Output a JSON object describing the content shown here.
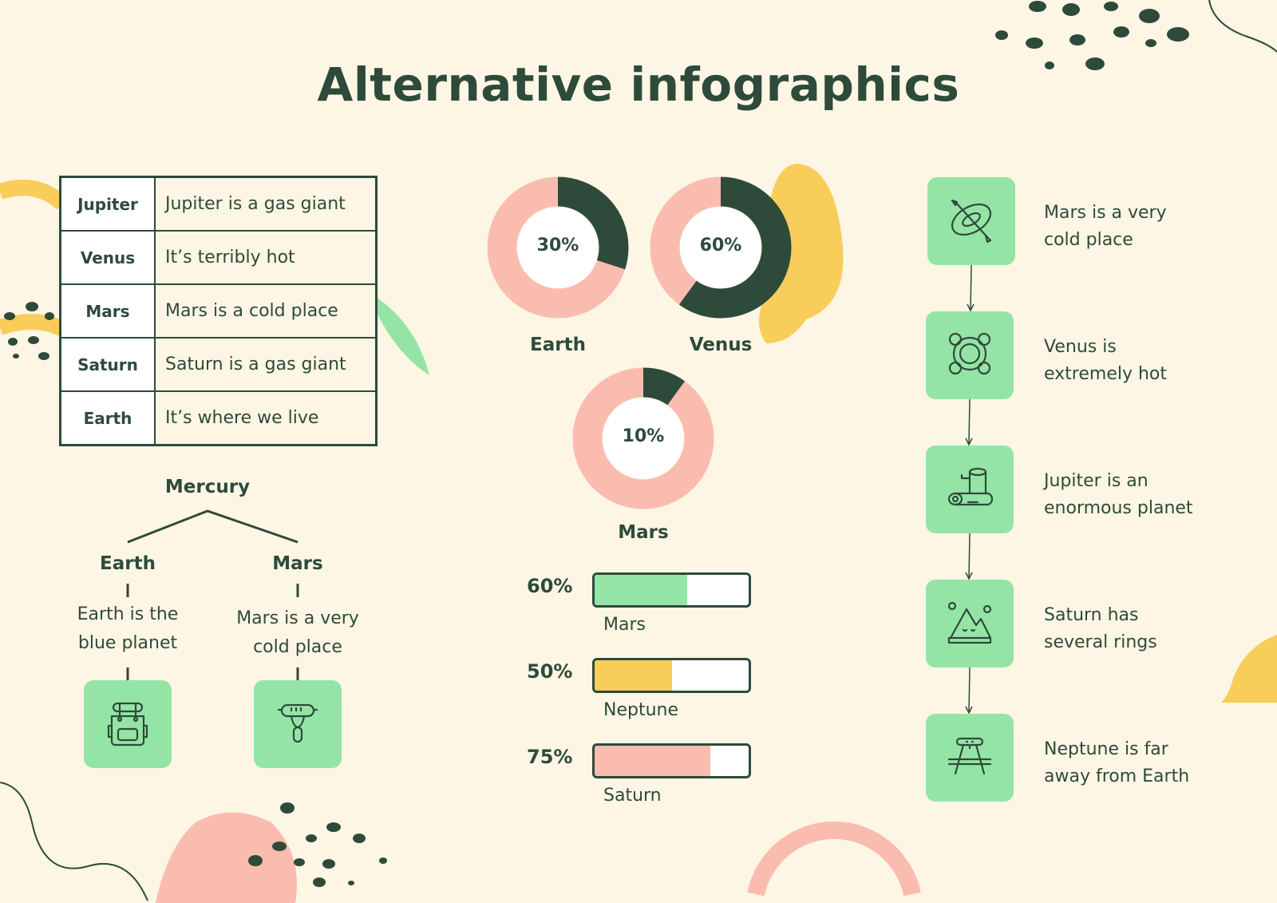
{
  "title": "Alternative infographics",
  "colors": {
    "background": "#fdf6e4",
    "dark": "#2e4a3b",
    "pink": "#fbbcb0",
    "green": "#94e5a5",
    "yellow": "#f9cd5a"
  },
  "table": [
    {
      "planet": "Jupiter",
      "desc": "Jupiter is a gas giant"
    },
    {
      "planet": "Venus",
      "desc": "It’s terribly hot"
    },
    {
      "planet": "Mars",
      "desc": "Mars is a cold place"
    },
    {
      "planet": "Saturn",
      "desc": "Saturn is a gas giant"
    },
    {
      "planet": "Earth",
      "desc": "It’s where we live"
    }
  ],
  "donuts": [
    {
      "label": "Earth",
      "value": 30,
      "text": "30%"
    },
    {
      "label": "Venus",
      "value": 60,
      "text": "60%"
    },
    {
      "label": "Mars",
      "value": 10,
      "text": "10%"
    }
  ],
  "bars": [
    {
      "label": "Mars",
      "value": 60,
      "text": "60%",
      "color": "#94e5a5"
    },
    {
      "label": "Neptune",
      "value": 50,
      "text": "50%",
      "color": "#f9cd5a"
    },
    {
      "label": "Saturn",
      "value": 75,
      "text": "75%",
      "color": "#fbbcb0"
    }
  ],
  "tree": {
    "root": "Mercury",
    "children": [
      {
        "name": "Earth",
        "desc1": "Earth is the",
        "desc2": "blue planet",
        "icon": "backpack-icon"
      },
      {
        "name": "Mars",
        "desc1": "Mars is a very",
        "desc2": "cold place",
        "icon": "sausage-fork-icon"
      }
    ]
  },
  "flow": [
    {
      "line1": "Mars is a very",
      "line2": "cold place",
      "icon": "kayak-icon"
    },
    {
      "line1": "Venus is",
      "line2": "extremely hot",
      "icon": "life-buoy-icon"
    },
    {
      "line1": "Jupiter is an",
      "line2": "enormous planet",
      "icon": "log-stump-icon"
    },
    {
      "line1": "Saturn has",
      "line2": "several rings",
      "icon": "mountains-icon"
    },
    {
      "line1": "Neptune is far",
      "line2": "away from Earth",
      "icon": "picnic-table-icon"
    }
  ]
}
